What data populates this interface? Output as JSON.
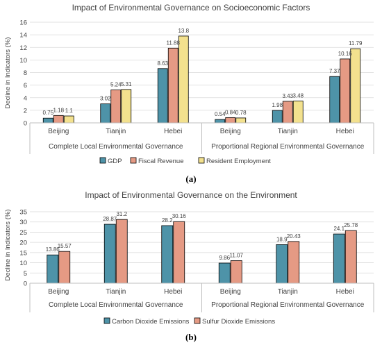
{
  "chart_data": [
    {
      "type": "bar",
      "panel_label": "(a)",
      "title": "Impact of Environmental Governance on Socioeconomic Factors",
      "ylabel": "Decline in Indicators (%)",
      "ylim": [
        0,
        16
      ],
      "yticks": [
        0,
        2,
        4,
        6,
        8,
        10,
        12,
        14,
        16
      ],
      "groups": [
        "Complete Local Environmental Governance",
        "Proportional Regional Environmental Governance"
      ],
      "categories": [
        "Beijing",
        "Tianjin",
        "Hebei",
        "Beijing",
        "Tianjin",
        "Hebei"
      ],
      "series": [
        {
          "name": "GDP",
          "color": "#4e93a8",
          "values": [
            0.75,
            3.02,
            8.63,
            0.54,
            1.98,
            7.37
          ],
          "labels": [
            "0.75",
            "3.02",
            "8.63",
            "0.54",
            "1.98",
            "7.37"
          ]
        },
        {
          "name": "Fiscal Revenue",
          "color": "#e59a84",
          "values": [
            1.18,
            5.24,
            11.88,
            0.84,
            3.43,
            10.16
          ],
          "labels": [
            "1.18",
            "5.24",
            "11.88",
            "0.84",
            "3.43",
            "10.16"
          ]
        },
        {
          "name": "Resident Employment",
          "color": "#f3e18e",
          "values": [
            1.1,
            5.31,
            13.8,
            0.78,
            3.48,
            11.79
          ],
          "labels": [
            "1.1",
            "5.31",
            "13.8",
            "0.78",
            "3.48",
            "11.79"
          ]
        }
      ],
      "grid": true,
      "legend": "bottom"
    },
    {
      "type": "bar",
      "panel_label": "(b)",
      "title": "Impact of Environmental Governance on the Environment",
      "ylabel": "Decline in Indicators (%)",
      "ylim": [
        0,
        35
      ],
      "yticks": [
        0,
        5,
        10,
        15,
        20,
        25,
        30,
        35
      ],
      "groups": [
        "Complete Local Environmental Governance",
        "Proportional Regional Environmental Governance"
      ],
      "categories": [
        "Beijing",
        "Tianjin",
        "Hebei",
        "Beijing",
        "Tianjin",
        "Hebei"
      ],
      "series": [
        {
          "name": "Carbon Dioxide Emissions",
          "color": "#4e93a8",
          "values": [
            13.86,
            28.87,
            28.2,
            9.86,
            18.9,
            24.1
          ],
          "labels": [
            "13.86",
            "28.87",
            "28.2",
            "9.86",
            "18.9",
            "24.1"
          ]
        },
        {
          "name": "Sulfur Dioxide Emissions",
          "color": "#e59a84",
          "values": [
            15.57,
            31.2,
            30.16,
            11.07,
            20.43,
            25.78
          ],
          "labels": [
            "15.57",
            "31.2",
            "30.16",
            "11.07",
            "20.43",
            "25.78"
          ]
        }
      ],
      "grid": true,
      "legend": "bottom"
    }
  ]
}
